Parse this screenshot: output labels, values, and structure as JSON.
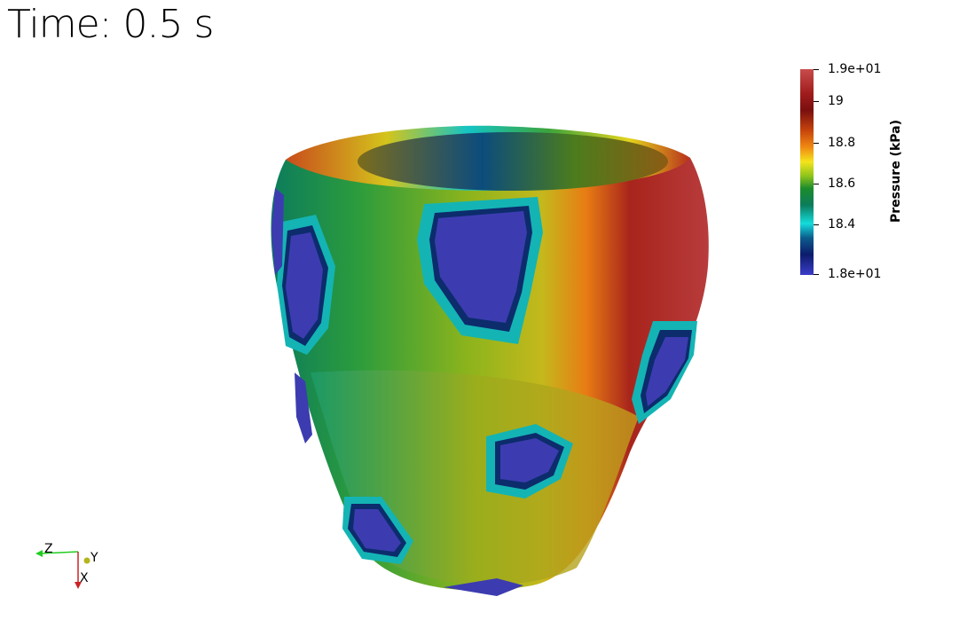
{
  "time_label": "Time: 0.5 s",
  "colorbar": {
    "title": "Pressure (kPa)",
    "labels": [
      "1.9e+01",
      "19",
      "18.8",
      "18.6",
      "18.4",
      "1.8e+01"
    ],
    "colormap": [
      "#c84c4c",
      "#7a0f0f",
      "#f08a12",
      "#f4e41c",
      "#1c8c2c",
      "#14dcdc",
      "#0c1c6c",
      "#3c3cc8"
    ]
  },
  "axes": {
    "z": "Z",
    "y": "Y",
    "x": "X",
    "z_color": "#22cc22",
    "y_color": "#cccc22",
    "x_color": "#cc2222"
  },
  "model": {
    "description_color_fill": "#1c8c2c"
  }
}
